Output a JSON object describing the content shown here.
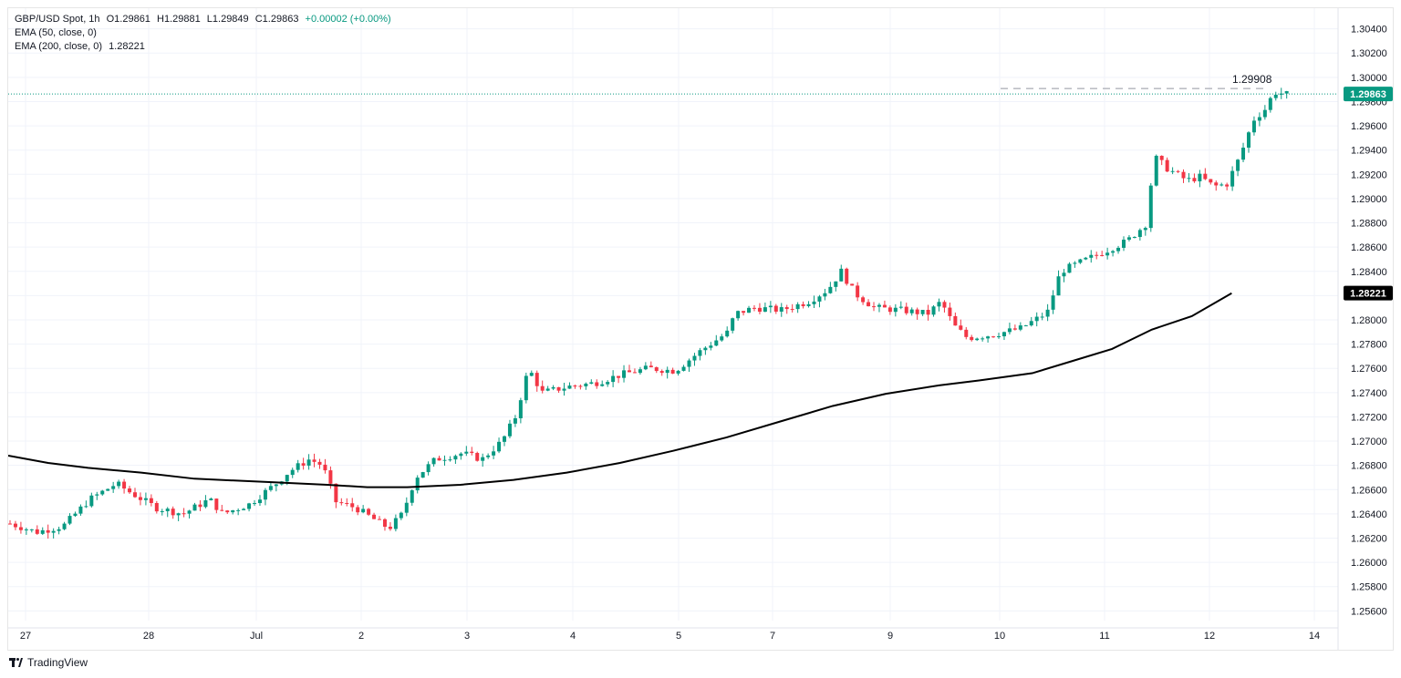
{
  "header": {
    "symbol": "GBP/USD Spot, 1h",
    "open": "O1.29861",
    "high": "H1.29881",
    "low": "L1.29849",
    "close": "C1.29863",
    "change": "+0.00002 (+0.00%)",
    "ema50": "EMA (50, close, 0)",
    "ema200_label": "EMA (200, close, 0)",
    "ema200_value": "1.28221"
  },
  "footer": {
    "brand": "TradingView"
  },
  "colors": {
    "up": "#089981",
    "down": "#f23645",
    "ema": "#000000",
    "grid": "#f0f3fa",
    "price_tag": "#089981",
    "ema_tag": "#000000"
  },
  "chart_data": {
    "type": "candlestick",
    "y_ticks": [
      "1.30400",
      "1.30200",
      "1.30000",
      "1.29800",
      "1.29600",
      "1.29400",
      "1.29200",
      "1.29000",
      "1.28800",
      "1.28600",
      "1.28400",
      "1.28200",
      "1.28000",
      "1.27800",
      "1.27600",
      "1.27400",
      "1.27200",
      "1.27000",
      "1.26800",
      "1.26600",
      "1.26400",
      "1.26200",
      "1.26000",
      "1.25800",
      "1.25600"
    ],
    "ylim": [
      1.2552,
      1.3057
    ],
    "x_ticks": [
      "27",
      "28",
      "Jul",
      "2",
      "3",
      "4",
      "5",
      "7",
      "9",
      "10",
      "11",
      "12",
      "14"
    ],
    "current_price": "1.29863",
    "ema_last": "1.28221",
    "high_annotation": "1.29908",
    "ema200_path": [
      [
        0,
        1.2688
      ],
      [
        0.03,
        1.2682
      ],
      [
        0.06,
        1.2678
      ],
      [
        0.1,
        1.2674
      ],
      [
        0.14,
        1.2669
      ],
      [
        0.2,
        1.2666
      ],
      [
        0.24,
        1.2664
      ],
      [
        0.27,
        1.2662
      ],
      [
        0.3,
        1.2662
      ],
      [
        0.34,
        1.2664
      ],
      [
        0.38,
        1.2668
      ],
      [
        0.42,
        1.2674
      ],
      [
        0.46,
        1.2682
      ],
      [
        0.5,
        1.2692
      ],
      [
        0.54,
        1.2703
      ],
      [
        0.58,
        1.2716
      ],
      [
        0.62,
        1.2729
      ],
      [
        0.66,
        1.2739
      ],
      [
        0.7,
        1.2746
      ],
      [
        0.73,
        1.275
      ],
      [
        0.77,
        1.2756
      ],
      [
        0.8,
        1.2766
      ],
      [
        0.83,
        1.2776
      ],
      [
        0.86,
        1.2792
      ],
      [
        0.89,
        1.2803
      ],
      [
        0.92,
        1.2822
      ]
    ],
    "close_path": [
      [
        0,
        1.2632
      ],
      [
        0.02,
        1.2625
      ],
      [
        0.04,
        1.263
      ],
      [
        0.06,
        1.2652
      ],
      [
        0.08,
        1.2665
      ],
      [
        0.09,
        1.2658
      ],
      [
        0.11,
        1.2645
      ],
      [
        0.13,
        1.264
      ],
      [
        0.15,
        1.2652
      ],
      [
        0.16,
        1.264
      ],
      [
        0.18,
        1.2648
      ],
      [
        0.2,
        1.2665
      ],
      [
        0.21,
        1.2675
      ],
      [
        0.225,
        1.2685
      ],
      [
        0.235,
        1.268
      ],
      [
        0.245,
        1.265
      ],
      [
        0.26,
        1.2645
      ],
      [
        0.27,
        1.2638
      ],
      [
        0.285,
        1.2628
      ],
      [
        0.295,
        1.264
      ],
      [
        0.305,
        1.267
      ],
      [
        0.32,
        1.2685
      ],
      [
        0.34,
        1.269
      ],
      [
        0.355,
        1.2685
      ],
      [
        0.37,
        1.27
      ],
      [
        0.38,
        1.272
      ],
      [
        0.39,
        1.276
      ],
      [
        0.4,
        1.274
      ],
      [
        0.42,
        1.2745
      ],
      [
        0.44,
        1.2748
      ],
      [
        0.46,
        1.2755
      ],
      [
        0.48,
        1.276
      ],
      [
        0.5,
        1.2758
      ],
      [
        0.52,
        1.2775
      ],
      [
        0.54,
        1.279
      ],
      [
        0.545,
        1.2805
      ],
      [
        0.56,
        1.281
      ],
      [
        0.58,
        1.2808
      ],
      [
        0.6,
        1.2815
      ],
      [
        0.615,
        1.2825
      ],
      [
        0.625,
        1.284
      ],
      [
        0.635,
        1.2822
      ],
      [
        0.65,
        1.281
      ],
      [
        0.67,
        1.2808
      ],
      [
        0.69,
        1.2805
      ],
      [
        0.7,
        1.2815
      ],
      [
        0.71,
        1.2795
      ],
      [
        0.72,
        1.2785
      ],
      [
        0.74,
        1.2788
      ],
      [
        0.76,
        1.2793
      ],
      [
        0.78,
        1.2806
      ],
      [
        0.79,
        1.284
      ],
      [
        0.81,
        1.285
      ],
      [
        0.83,
        1.286
      ],
      [
        0.84,
        1.2865
      ],
      [
        0.855,
        1.288
      ],
      [
        0.86,
        1.2935
      ],
      [
        0.87,
        1.2925
      ],
      [
        0.885,
        1.2915
      ],
      [
        0.895,
        1.2918
      ],
      [
        0.905,
        1.291
      ],
      [
        0.915,
        1.2912
      ],
      [
        0.925,
        1.2935
      ],
      [
        0.935,
        1.2965
      ],
      [
        0.945,
        1.2975
      ],
      [
        0.95,
        1.2988
      ],
      [
        0.96,
        1.2986
      ]
    ]
  }
}
